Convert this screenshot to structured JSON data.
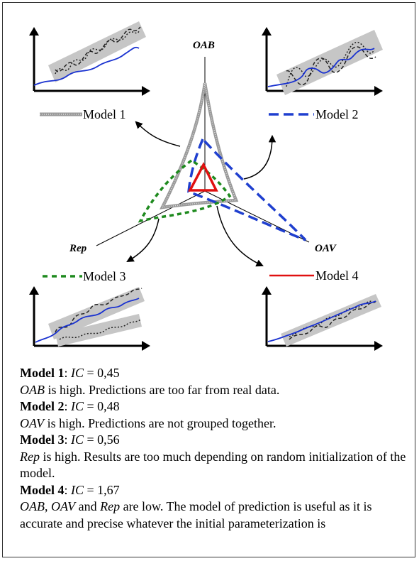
{
  "axes": {
    "oab": "OAB",
    "oav": "OAV",
    "rep": "Rep"
  },
  "legend": {
    "model1": "Model 1",
    "model2": "Model 2",
    "model3": "Model 3",
    "model4": "Model 4"
  },
  "colors": {
    "model1": "#9a9a9a",
    "model2": "#1f3fcf",
    "model3": "#1e8a1e",
    "model4": "#e01010",
    "band": "#c2c2c2",
    "real_data": "#1a32d0"
  },
  "notes": [
    {
      "name": "Model 1",
      "ic_label": "IC",
      "eq": " = ",
      "ic_value": "0,45",
      "desc_var": "OAB",
      "desc_text": " is high. Predictions are too far from real data."
    },
    {
      "name": "Model 2",
      "ic_label": "IC",
      "eq": " = ",
      "ic_value": "0,48",
      "desc_var": "OAV",
      "desc_text": " is high. Predictions are not grouped together."
    },
    {
      "name": "Model 3",
      "ic_label": "IC",
      "eq": " = ",
      "ic_value": "0,56",
      "desc_var": "Rep",
      "desc_text": " is high. Results are too much depending on random initialization of the model."
    },
    {
      "name": "Model 4",
      "ic_label": "IC",
      "eq": " = ",
      "ic_value": "1,67",
      "desc_vars": [
        "OAB",
        "OAV",
        "Rep"
      ],
      "sep1": ", ",
      "sep2": " and ",
      "desc_text": " are low. The model of prediction is useful as it is accurate and precise whatever the initial parameterization is"
    }
  ]
}
